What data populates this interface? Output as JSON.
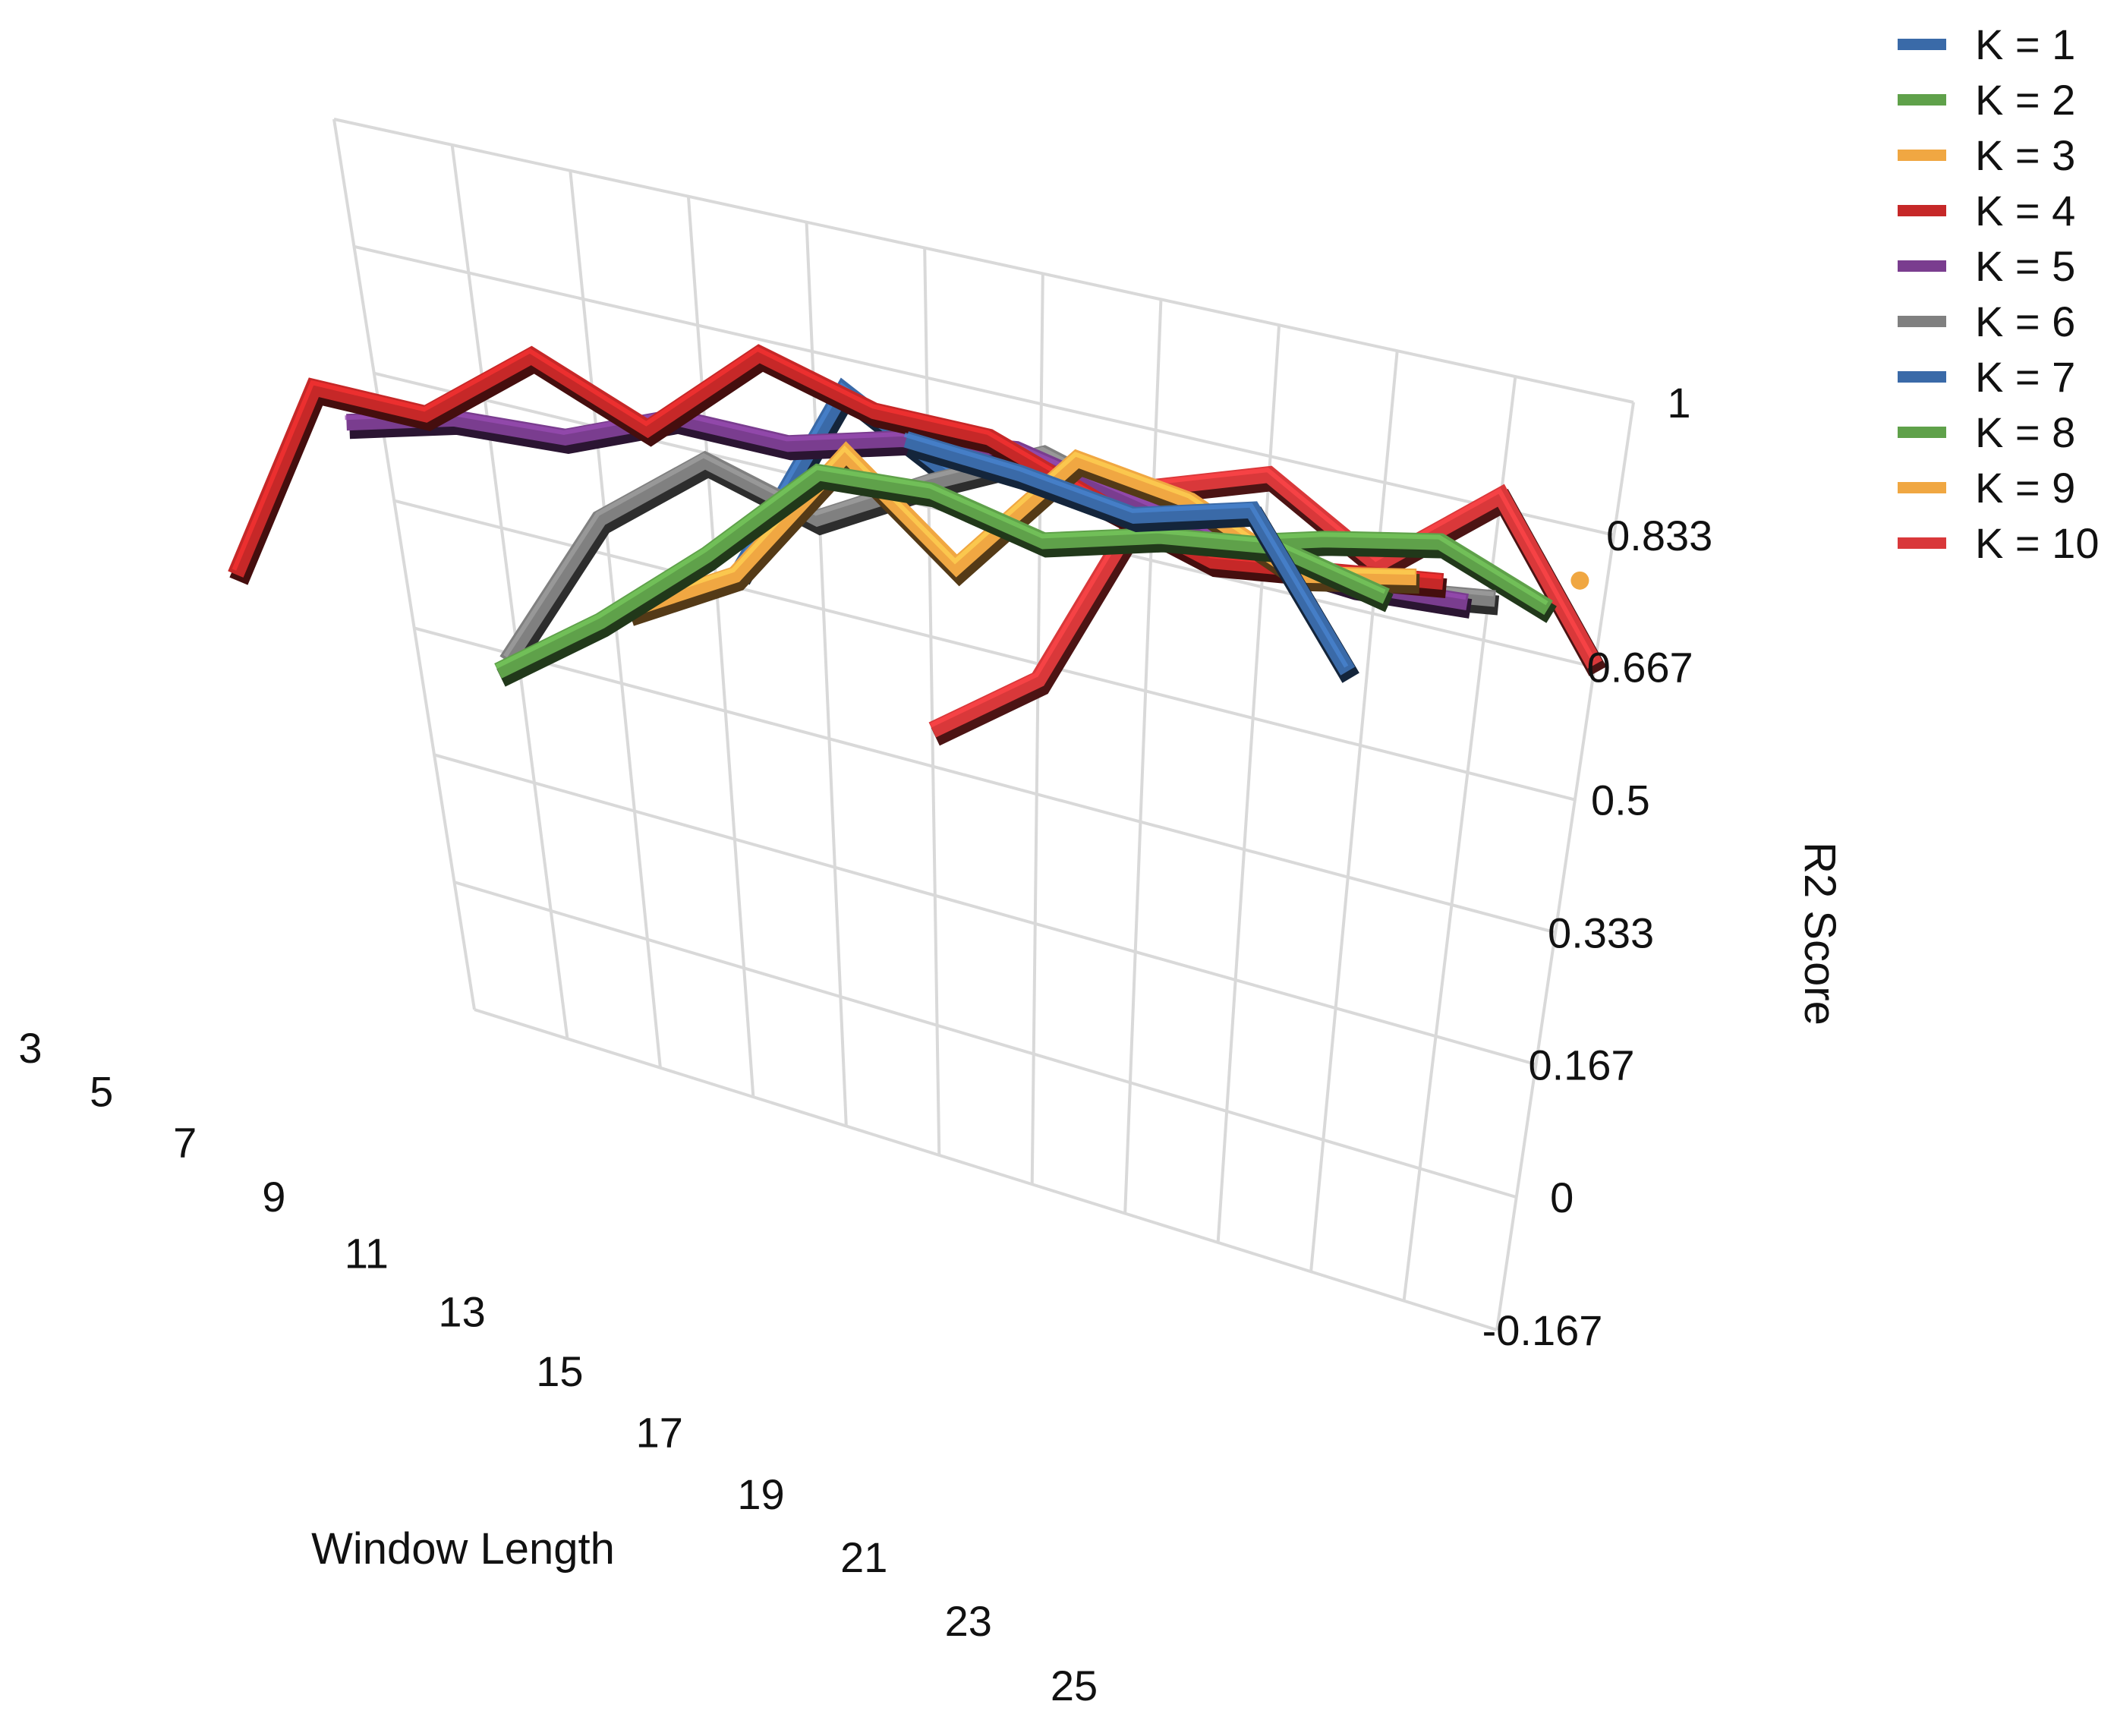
{
  "chart_data": {
    "type": "line",
    "render": "3d-ribbon",
    "title": "",
    "xlabel": "Window Length",
    "ylabel": "R2 Score",
    "grid": true,
    "legend_position": "top-right",
    "x_tick_labels": [
      "3",
      "5",
      "7",
      "9",
      "11",
      "13",
      "15",
      "17",
      "19",
      "21",
      "23",
      "25"
    ],
    "y_tick_labels": [
      "1",
      "0.833",
      "0.667",
      "0.5",
      "0.333",
      "0.167",
      "0",
      "-0.167"
    ],
    "y_ticks": [
      1,
      0.833,
      0.667,
      0.5,
      0.333,
      0.167,
      0,
      -0.167
    ],
    "ylim": [
      -0.167,
      1
    ],
    "x": [
      3,
      5,
      7,
      9,
      11,
      13,
      15,
      17,
      19,
      21,
      23,
      25
    ],
    "series": [
      {
        "name": "K = 1",
        "color": "#3a6aa8",
        "values": [
          null,
          null,
          null,
          null,
          null,
          null,
          null,
          0.86,
          0.85,
          0.83,
          0.87,
          0.7
        ]
      },
      {
        "name": "K = 2",
        "color": "#5fa14a",
        "values": [
          null,
          null,
          null,
          0.42,
          0.52,
          0.64,
          0.78,
          0.79,
          0.76,
          0.8,
          0.82,
          0.79
        ]
      },
      {
        "name": "K = 3",
        "color": "#f0a742",
        "values": [
          null,
          null,
          null,
          null,
          0.53,
          0.61,
          0.8,
          0.69,
          0.86,
          0.84,
          0.78,
          0.81
        ]
      },
      {
        "name": "K = 4",
        "color": "#c62828",
        "values": [
          0.43,
          0.71,
          0.71,
          0.82,
          0.76,
          0.89,
          0.85,
          0.85,
          0.8,
          0.76,
          0.78,
          0.8
        ]
      },
      {
        "name": "K = 5",
        "color": "#7a3d8f",
        "values": [
          null,
          0.66,
          0.7,
          0.71,
          0.77,
          0.77,
          0.81,
          0.83,
          0.8,
          0.77,
          0.76,
          0.77
        ]
      },
      {
        "name": "K = 6",
        "color": "#808080",
        "values": [
          null,
          null,
          0.38,
          0.6,
          0.71,
          0.67,
          0.75,
          0.82,
          0.78,
          0.75,
          0.75,
          0.77
        ]
      },
      {
        "name": "K = 7",
        "color": "#3a6aa8",
        "values": [
          null,
          null,
          null,
          null,
          0.56,
          0.83,
          0.75,
          null,
          null,
          null,
          null,
          null
        ]
      },
      {
        "name": "K = 8",
        "color": "#5fa14a",
        "values": [
          null,
          null,
          null,
          null,
          null,
          null,
          null,
          null,
          0.73,
          0.77,
          0.8,
          0.75
        ]
      },
      {
        "name": "K = 9",
        "color": "#f0a742",
        "values": [
          null,
          null,
          null,
          null,
          null,
          null,
          null,
          null,
          null,
          null,
          null,
          0.78
        ]
      },
      {
        "name": "K = 10",
        "color": "#d9383a",
        "values": [
          null,
          null,
          null,
          null,
          null,
          0.38,
          0.48,
          0.76,
          0.81,
          0.73,
          0.85,
          0.67
        ]
      }
    ]
  }
}
